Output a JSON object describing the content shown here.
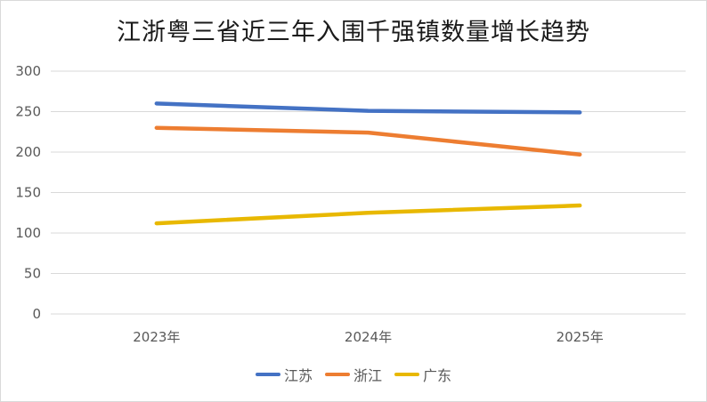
{
  "chart_data": {
    "type": "line",
    "title": "江浙粤三省近三年入围千强镇数量增长趋势",
    "categories": [
      "2023年",
      "2024年",
      "2025年"
    ],
    "series": [
      {
        "name": "江苏",
        "values": [
          260,
          251,
          249
        ],
        "color": "#4472c4"
      },
      {
        "name": "浙江",
        "values": [
          230,
          224,
          197
        ],
        "color": "#ed7d31"
      },
      {
        "name": "广东",
        "values": [
          112,
          125,
          134
        ],
        "color": "#e8b800"
      }
    ],
    "ylim": [
      0,
      300
    ],
    "yticks": [
      "0",
      "50",
      "100",
      "150",
      "200",
      "250",
      "300"
    ],
    "xlabel": "",
    "ylabel": "",
    "grid": true,
    "legend": "bottom"
  }
}
